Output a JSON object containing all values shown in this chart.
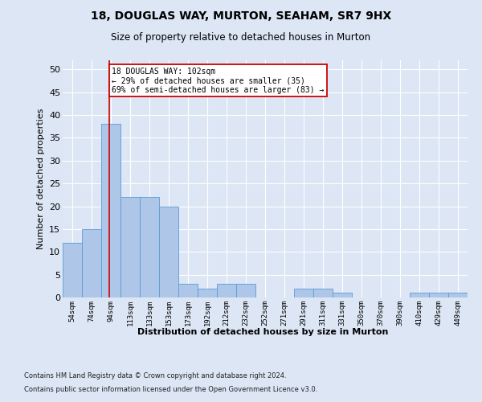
{
  "title": "18, DOUGLAS WAY, MURTON, SEAHAM, SR7 9HX",
  "subtitle": "Size of property relative to detached houses in Murton",
  "xlabel": "Distribution of detached houses by size in Murton",
  "ylabel": "Number of detached properties",
  "categories": [
    "54sqm",
    "74sqm",
    "94sqm",
    "113sqm",
    "133sqm",
    "153sqm",
    "173sqm",
    "192sqm",
    "212sqm",
    "232sqm",
    "252sqm",
    "271sqm",
    "291sqm",
    "311sqm",
    "331sqm",
    "350sqm",
    "370sqm",
    "390sqm",
    "410sqm",
    "429sqm",
    "449sqm"
  ],
  "values": [
    12,
    15,
    38,
    22,
    22,
    20,
    3,
    2,
    3,
    3,
    0,
    0,
    2,
    2,
    1,
    0,
    0,
    0,
    1,
    1,
    1
  ],
  "bar_color": "#aec6e8",
  "bar_edge_color": "#5b9bd5",
  "bin_edges": [
    54,
    74,
    94,
    113,
    133,
    153,
    173,
    192,
    212,
    232,
    252,
    271,
    291,
    311,
    331,
    350,
    370,
    390,
    410,
    429,
    449
  ],
  "annotation_text": "18 DOUGLAS WAY: 102sqm\n← 29% of detached houses are smaller (35)\n69% of semi-detached houses are larger (83) →",
  "annotation_box_color": "#ffffff",
  "annotation_box_edge_color": "#cc0000",
  "property_line_color": "#cc0000",
  "property_size": 102,
  "ylim": [
    0,
    52
  ],
  "yticks": [
    0,
    5,
    10,
    15,
    20,
    25,
    30,
    35,
    40,
    45,
    50
  ],
  "footer_line1": "Contains HM Land Registry data © Crown copyright and database right 2024.",
  "footer_line2": "Contains public sector information licensed under the Open Government Licence v3.0.",
  "background_color": "#dce6f5",
  "plot_bg_color": "#dce6f5",
  "grid_color": "#ffffff"
}
